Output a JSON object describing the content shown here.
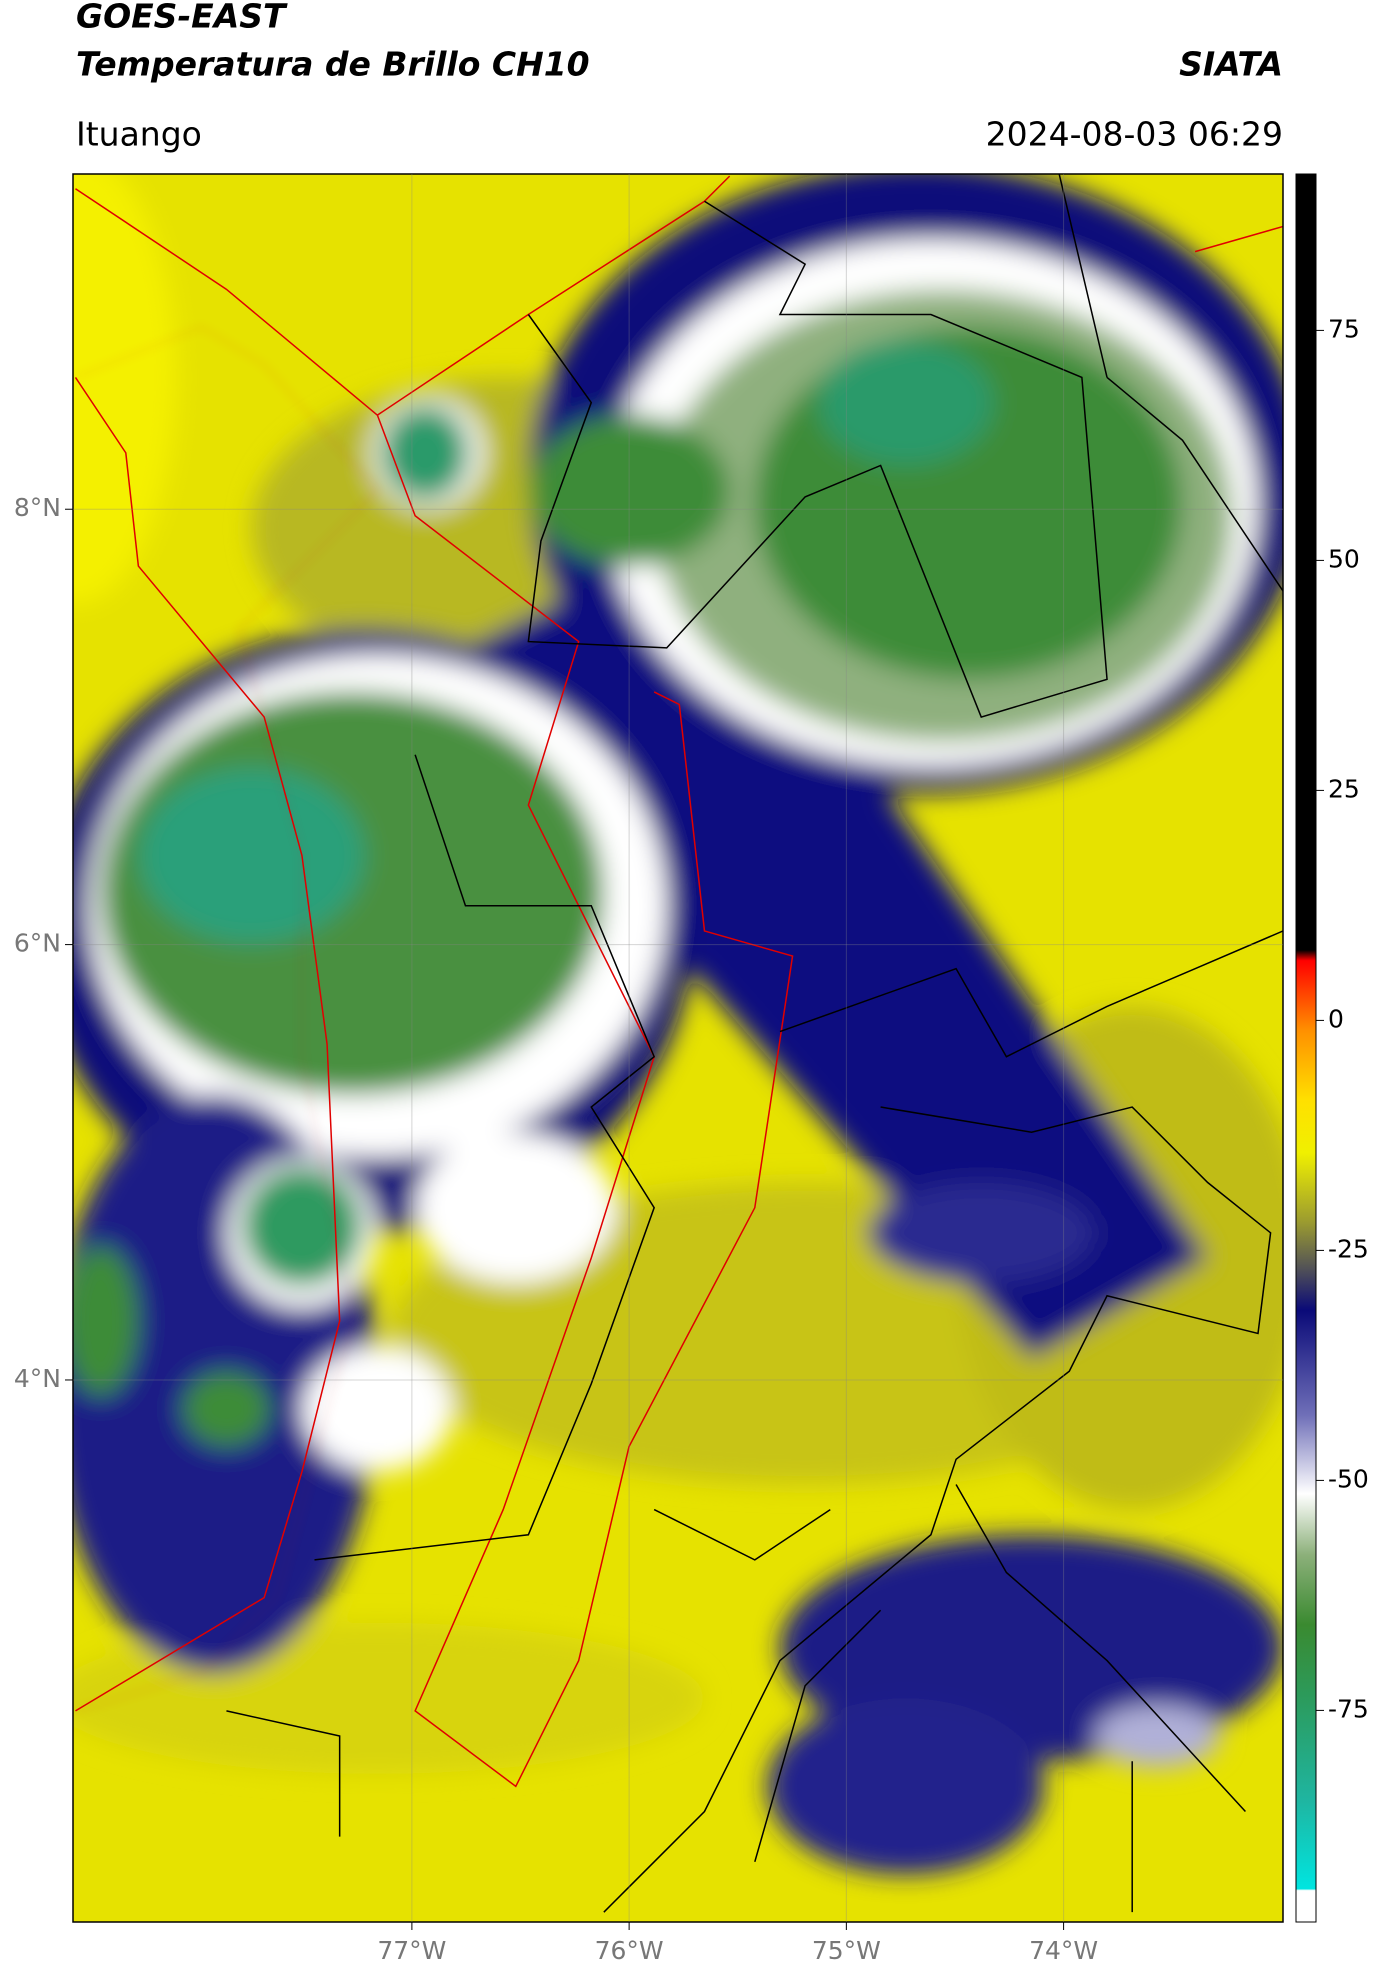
{
  "header": {
    "title": "GOES-EAST",
    "subtitle": "Temperatura de Brillo CH10",
    "source": "SIATA",
    "location": "Ituango",
    "datetime": "2024-08-03 06:29"
  },
  "map": {
    "xlim": [
      -78.56,
      -72.99
    ],
    "ylim": [
      1.51,
      9.54
    ],
    "xticks": [
      {
        "value": -77,
        "label": "77°W"
      },
      {
        "value": -76,
        "label": "76°W"
      },
      {
        "value": -75,
        "label": "75°W"
      },
      {
        "value": -74,
        "label": "74°W"
      }
    ],
    "yticks": [
      {
        "value": 8,
        "label": "8°N"
      },
      {
        "value": 6,
        "label": "6°N"
      },
      {
        "value": 4,
        "label": "4°N"
      }
    ],
    "grid": true
  },
  "colorbar": {
    "ylim": [
      -98,
      92
    ],
    "yticks": [
      75,
      50,
      25,
      0,
      -25,
      -50,
      -75
    ]
  }
}
